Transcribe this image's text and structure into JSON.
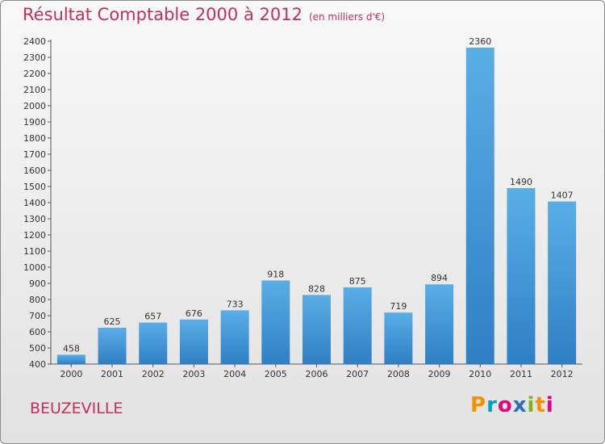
{
  "title": "Résultat Comptable 2000 à 2012",
  "subtitle": "(en milliers d'€)",
  "location": "BEUZEVILLE",
  "brand": {
    "letters": [
      "P",
      "r",
      "o",
      "x",
      "i",
      "t",
      "i"
    ],
    "colors": [
      "#f39200",
      "#00a0c6",
      "#e6007e",
      "#2a6ebb",
      "#7ab51d",
      "#f39200",
      "#e6007e"
    ]
  },
  "colors": {
    "title": "#c0305a",
    "bar_light": "#5aaee6",
    "bar_dark": "#2f7fc4"
  },
  "chart_data": {
    "type": "bar",
    "categories": [
      "2000",
      "2001",
      "2002",
      "2003",
      "2004",
      "2005",
      "2006",
      "2007",
      "2008",
      "2009",
      "2010",
      "2011",
      "2012"
    ],
    "values": [
      458,
      625,
      657,
      676,
      733,
      918,
      828,
      875,
      719,
      894,
      2360,
      1490,
      1407
    ],
    "ylim": [
      400,
      2400
    ],
    "ytick_step": 100,
    "grid": false,
    "xlabel": "",
    "ylabel": ""
  }
}
